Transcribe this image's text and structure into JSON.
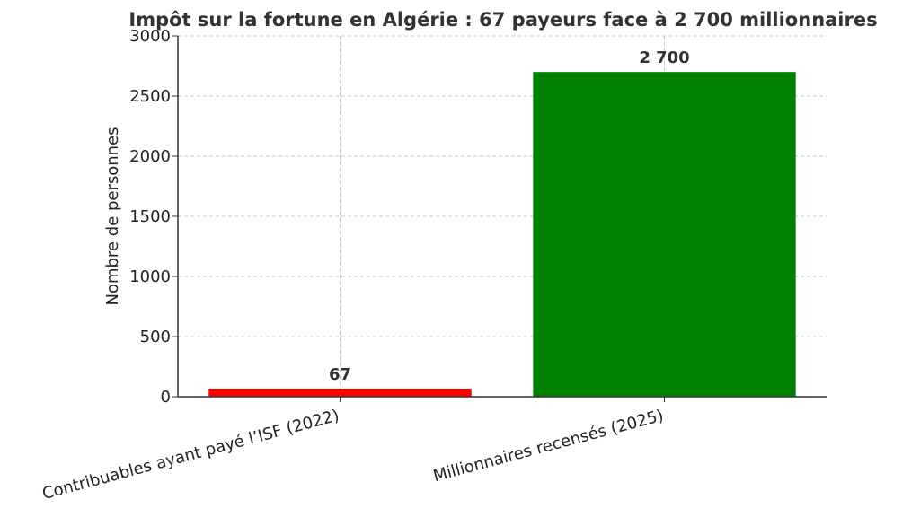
{
  "chart_data": {
    "type": "bar",
    "title": "Impôt sur la fortune en Algérie : 67 payeurs face à 2 700 millionnaires",
    "xlabel": "",
    "ylabel": "Nombre de personnes",
    "categories": [
      "Contribuables ayant payé l’ISF (2022)",
      "Millionnaires recensés (2025)"
    ],
    "values": [
      67,
      2700
    ],
    "data_labels": [
      "67",
      "2 700"
    ],
    "colors": [
      "#ff0000",
      "#008000"
    ],
    "ylim": [
      0,
      3000
    ],
    "yticks": [
      0,
      500,
      1000,
      1500,
      2000,
      2500,
      3000
    ],
    "grid": true,
    "legend": "none"
  }
}
